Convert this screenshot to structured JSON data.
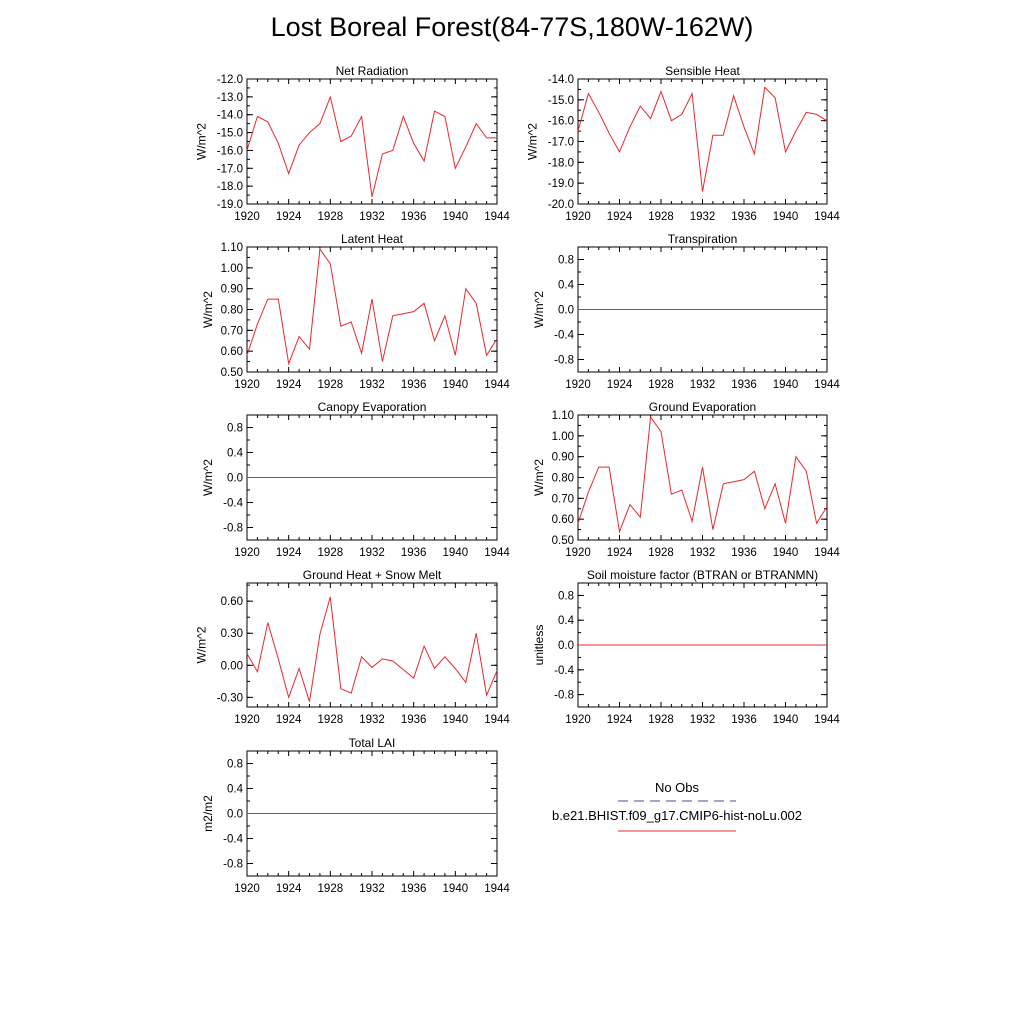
{
  "title": "Lost Boreal Forest(84-77S,180W-162W)",
  "legend": {
    "entries": [
      {
        "label": "No Obs",
        "color": "#4a4a9a",
        "style": "dashed"
      },
      {
        "label": "b.e21.BHIST.f09_g17.CMIP6-hist-noLu.002",
        "color": "#e8282b",
        "style": "solid"
      }
    ]
  },
  "chart_data": [
    {
      "type": "line",
      "title": "Net Radiation",
      "ylabel": "W/m^2",
      "xlim": [
        1920,
        1944
      ],
      "ylim": [
        -19.0,
        -12.0
      ],
      "xticks": [
        1920,
        1924,
        1928,
        1932,
        1936,
        1940,
        1944
      ],
      "yticks": [
        -19.0,
        -18.0,
        -17.0,
        -16.0,
        -15.0,
        -14.0,
        -13.0,
        -12.0
      ],
      "ytick_labels": [
        "-19.0",
        "-18.0",
        "-17.0",
        "-16.0",
        "-15.0",
        "-14.0",
        "-13.0",
        "-12.0"
      ],
      "series": [
        {
          "color": "#e8282b",
          "x": [
            1920,
            1921,
            1922,
            1923,
            1924,
            1925,
            1926,
            1927,
            1928,
            1929,
            1930,
            1931,
            1932,
            1933,
            1934,
            1935,
            1936,
            1937,
            1938,
            1939,
            1940,
            1941,
            1942,
            1943,
            1944
          ],
          "values": [
            -16.0,
            -14.1,
            -14.4,
            -15.6,
            -17.3,
            -15.7,
            -15.0,
            -14.5,
            -13.0,
            -15.5,
            -15.2,
            -14.1,
            -18.6,
            -16.2,
            -16.0,
            -14.1,
            -15.6,
            -16.6,
            -13.8,
            -14.1,
            -17.0,
            -15.8,
            -14.5,
            -15.3,
            -15.3
          ]
        }
      ]
    },
    {
      "type": "line",
      "title": "Sensible Heat",
      "ylabel": "W/m^2",
      "xlim": [
        1920,
        1944
      ],
      "ylim": [
        -20.0,
        -14.0
      ],
      "xticks": [
        1920,
        1924,
        1928,
        1932,
        1936,
        1940,
        1944
      ],
      "yticks": [
        -20.0,
        -19.0,
        -18.0,
        -17.0,
        -16.0,
        -15.0,
        -14.0
      ],
      "ytick_labels": [
        "-20.0",
        "-19.0",
        "-18.0",
        "-17.0",
        "-16.0",
        "-15.0",
        "-14.0"
      ],
      "series": [
        {
          "color": "#e8282b",
          "x": [
            1920,
            1921,
            1922,
            1923,
            1924,
            1925,
            1926,
            1927,
            1928,
            1929,
            1930,
            1931,
            1932,
            1933,
            1934,
            1935,
            1936,
            1937,
            1938,
            1939,
            1940,
            1941,
            1942,
            1943,
            1944
          ],
          "values": [
            -16.5,
            -14.7,
            -15.6,
            -16.6,
            -17.5,
            -16.3,
            -15.3,
            -15.9,
            -14.6,
            -16.0,
            -15.7,
            -14.7,
            -19.4,
            -16.7,
            -16.7,
            -14.8,
            -16.3,
            -17.6,
            -14.4,
            -14.9,
            -17.5,
            -16.5,
            -15.6,
            -15.7,
            -16.0
          ]
        }
      ]
    },
    {
      "type": "line",
      "title": "Latent Heat",
      "ylabel": "W/m^2",
      "xlim": [
        1920,
        1944
      ],
      "ylim": [
        0.5,
        1.1
      ],
      "xticks": [
        1920,
        1924,
        1928,
        1932,
        1936,
        1940,
        1944
      ],
      "yticks": [
        0.5,
        0.6,
        0.7,
        0.8,
        0.9,
        1.0,
        1.1
      ],
      "ytick_labels": [
        "0.50",
        "0.60",
        "0.70",
        "0.80",
        "0.90",
        "1.00",
        "1.10"
      ],
      "series": [
        {
          "color": "#e8282b",
          "x": [
            1920,
            1921,
            1922,
            1923,
            1924,
            1925,
            1926,
            1927,
            1928,
            1929,
            1930,
            1931,
            1932,
            1933,
            1934,
            1935,
            1936,
            1937,
            1938,
            1939,
            1940,
            1941,
            1942,
            1943,
            1944
          ],
          "values": [
            0.58,
            0.73,
            0.85,
            0.85,
            0.54,
            0.67,
            0.61,
            1.09,
            1.02,
            0.72,
            0.74,
            0.59,
            0.85,
            0.55,
            0.77,
            0.78,
            0.79,
            0.83,
            0.65,
            0.77,
            0.58,
            0.9,
            0.83,
            0.58,
            0.66
          ]
        }
      ]
    },
    {
      "type": "line",
      "title": "Transpiration",
      "ylabel": "W/m^2",
      "xlim": [
        1920,
        1944
      ],
      "ylim": [
        -1.0,
        1.0
      ],
      "xticks": [
        1920,
        1924,
        1928,
        1932,
        1936,
        1940,
        1944
      ],
      "yticks": [
        -0.8,
        -0.4,
        0.0,
        0.4,
        0.8
      ],
      "ytick_labels": [
        "-0.8",
        "-0.4",
        "0.0",
        "0.4",
        "0.8"
      ],
      "series": [
        {
          "color": "#e8282b",
          "x": [
            1920,
            1944
          ],
          "values": [
            0.0,
            0.0
          ]
        }
      ]
    },
    {
      "type": "line",
      "title": "Canopy Evaporation",
      "ylabel": "W/m^2",
      "xlim": [
        1920,
        1944
      ],
      "ylim": [
        -1.0,
        1.0
      ],
      "xticks": [
        1920,
        1924,
        1928,
        1932,
        1936,
        1940,
        1944
      ],
      "yticks": [
        -0.8,
        -0.4,
        0.0,
        0.4,
        0.8
      ],
      "ytick_labels": [
        "-0.8",
        "-0.4",
        "0.0",
        "0.4",
        "0.8"
      ],
      "series": [
        {
          "color": "#e8282b",
          "x": [
            1920,
            1944
          ],
          "values": [
            0.0,
            0.0
          ]
        }
      ]
    },
    {
      "type": "line",
      "title": "Ground Evaporation",
      "ylabel": "W/m^2",
      "xlim": [
        1920,
        1944
      ],
      "ylim": [
        0.5,
        1.1
      ],
      "xticks": [
        1920,
        1924,
        1928,
        1932,
        1936,
        1940,
        1944
      ],
      "yticks": [
        0.5,
        0.6,
        0.7,
        0.8,
        0.9,
        1.0,
        1.1
      ],
      "ytick_labels": [
        "0.50",
        "0.60",
        "0.70",
        "0.80",
        "0.90",
        "1.00",
        "1.10"
      ],
      "series": [
        {
          "color": "#e8282b",
          "x": [
            1920,
            1921,
            1922,
            1923,
            1924,
            1925,
            1926,
            1927,
            1928,
            1929,
            1930,
            1931,
            1932,
            1933,
            1934,
            1935,
            1936,
            1937,
            1938,
            1939,
            1940,
            1941,
            1942,
            1943,
            1944
          ],
          "values": [
            0.58,
            0.73,
            0.85,
            0.85,
            0.54,
            0.67,
            0.61,
            1.09,
            1.02,
            0.72,
            0.74,
            0.59,
            0.85,
            0.55,
            0.77,
            0.78,
            0.79,
            0.83,
            0.65,
            0.77,
            0.58,
            0.9,
            0.83,
            0.58,
            0.66
          ]
        }
      ]
    },
    {
      "type": "line",
      "title": "Ground Heat + Snow Melt",
      "ylabel": "W/m^2",
      "xlim": [
        1920,
        1944
      ],
      "ylim": [
        -0.39,
        0.77
      ],
      "xticks": [
        1920,
        1924,
        1928,
        1932,
        1936,
        1940,
        1944
      ],
      "yticks": [
        -0.3,
        0.0,
        0.3,
        0.6
      ],
      "ytick_labels": [
        "-0.30",
        "0.00",
        "0.30",
        "0.60"
      ],
      "series": [
        {
          "color": "#e8282b",
          "x": [
            1920,
            1921,
            1922,
            1923,
            1924,
            1925,
            1926,
            1927,
            1928,
            1929,
            1930,
            1931,
            1932,
            1933,
            1934,
            1935,
            1936,
            1937,
            1938,
            1939,
            1940,
            1941,
            1942,
            1943,
            1944
          ],
          "values": [
            0.11,
            -0.06,
            0.4,
            0.06,
            -0.3,
            -0.03,
            -0.34,
            0.29,
            0.64,
            -0.22,
            -0.26,
            0.08,
            -0.02,
            0.06,
            0.04,
            -0.04,
            -0.12,
            0.18,
            -0.03,
            0.08,
            -0.03,
            -0.16,
            0.3,
            -0.28,
            -0.05
          ]
        }
      ]
    },
    {
      "type": "line",
      "title": "Soil moisture factor (BTRAN or BTRANMN)",
      "ylabel": "unitless",
      "xlim": [
        1920,
        1944
      ],
      "ylim": [
        -1.0,
        1.0
      ],
      "xticks": [
        1920,
        1924,
        1928,
        1932,
        1936,
        1940,
        1944
      ],
      "yticks": [
        -0.8,
        -0.4,
        0.0,
        0.4,
        0.8
      ],
      "ytick_labels": [
        "-0.8",
        "-0.4",
        "0.0",
        "0.4",
        "0.8"
      ],
      "series": [
        {
          "color": "#e8282b",
          "x": [
            1920,
            1944
          ],
          "values": [
            0.0,
            0.0
          ]
        }
      ]
    },
    {
      "type": "line",
      "title": "Total LAI",
      "ylabel": "m2/m2",
      "xlim": [
        1920,
        1944
      ],
      "ylim": [
        -1.0,
        1.0
      ],
      "xticks": [
        1920,
        1924,
        1928,
        1932,
        1936,
        1940,
        1944
      ],
      "yticks": [
        -0.8,
        -0.4,
        0.0,
        0.4,
        0.8
      ],
      "ytick_labels": [
        "-0.8",
        "-0.4",
        "0.0",
        "0.4",
        "0.8"
      ],
      "series": [
        {
          "color": "#e8282b",
          "x": [
            1920,
            1944
          ],
          "values": [
            0.0,
            0.0
          ]
        }
      ]
    }
  ]
}
